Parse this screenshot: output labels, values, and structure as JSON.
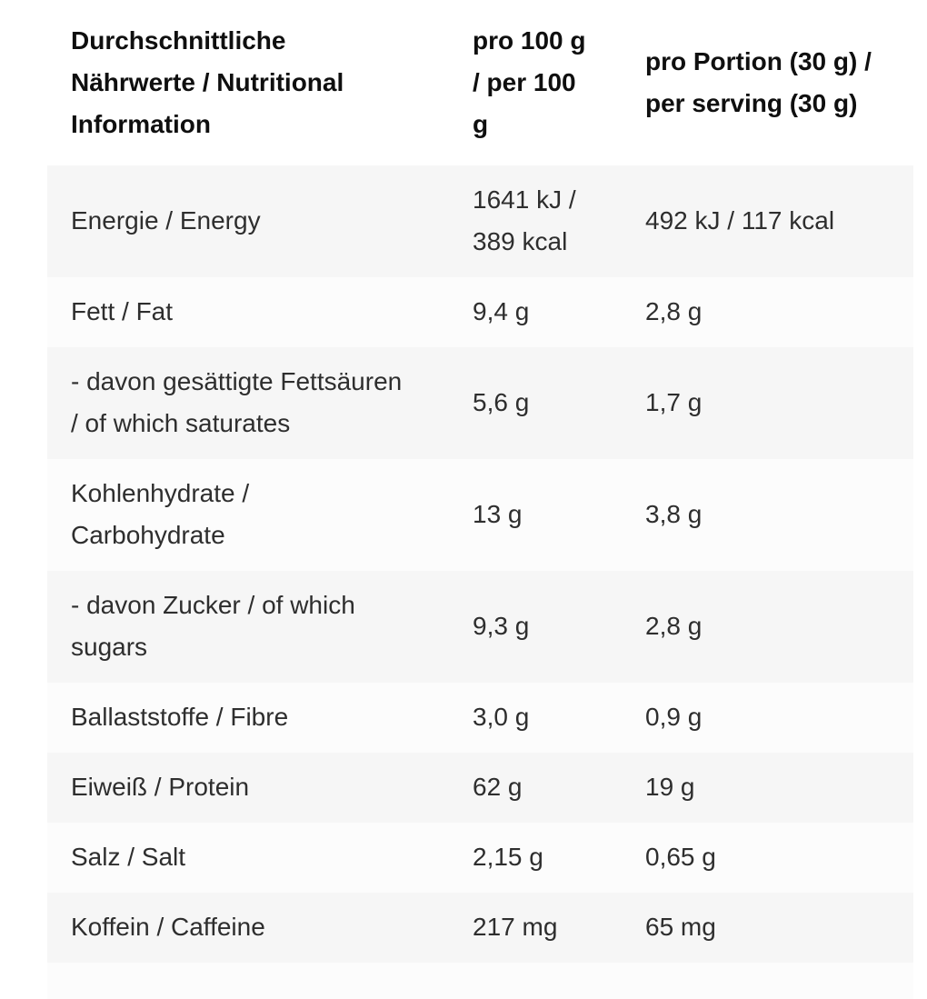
{
  "table": {
    "title": "Nutrition information table",
    "colors": {
      "shaded_row": "#f6f6f6",
      "unshaded_row": "#fcfcfc",
      "header_text": "#0f0f0f",
      "body_text": "#2e2e2e",
      "page_background": "#ffffff"
    },
    "columns": [
      {
        "id": "nutrient",
        "header_lines": [
          "Durchschnittliche",
          "Nährwerte / Nutritional",
          "Information"
        ]
      },
      {
        "id": "per_100g",
        "header_lines": [
          "pro 100 g",
          "/ per 100",
          "g"
        ]
      },
      {
        "id": "per_serving",
        "header_lines": [
          "pro Portion (30 g) /",
          "per serving (30 g)"
        ]
      }
    ],
    "rows": [
      {
        "label_lines": [
          "Energie / Energy"
        ],
        "per100_lines": [
          "1641 kJ /",
          "389 kcal"
        ],
        "portion_lines": [
          "492 kJ / 117 kcal"
        ],
        "shaded": true
      },
      {
        "label_lines": [
          "Fett / Fat"
        ],
        "per100_lines": [
          "9,4 g"
        ],
        "portion_lines": [
          "2,8 g"
        ],
        "shaded": false
      },
      {
        "label_lines": [
          "- davon gesättigte Fettsäuren",
          "/ of which saturates"
        ],
        "per100_lines": [
          "5,6 g"
        ],
        "portion_lines": [
          "1,7 g"
        ],
        "shaded": true
      },
      {
        "label_lines": [
          "Kohlenhydrate /",
          "Carbohydrate"
        ],
        "per100_lines": [
          "13 g"
        ],
        "portion_lines": [
          "3,8 g"
        ],
        "shaded": false
      },
      {
        "label_lines": [
          "- davon Zucker / of which",
          "sugars"
        ],
        "per100_lines": [
          "9,3 g"
        ],
        "portion_lines": [
          "2,8 g"
        ],
        "shaded": true
      },
      {
        "label_lines": [
          "Ballaststoffe / Fibre"
        ],
        "per100_lines": [
          "3,0 g"
        ],
        "portion_lines": [
          "0,9 g"
        ],
        "shaded": false
      },
      {
        "label_lines": [
          "Eiweiß / Protein"
        ],
        "per100_lines": [
          "62 g"
        ],
        "portion_lines": [
          "19 g"
        ],
        "shaded": true
      },
      {
        "label_lines": [
          "Salz / Salt"
        ],
        "per100_lines": [
          "2,15 g"
        ],
        "portion_lines": [
          "0,65 g"
        ],
        "shaded": false
      },
      {
        "label_lines": [
          "Koffein / Caffeine"
        ],
        "per100_lines": [
          "217 mg"
        ],
        "portion_lines": [
          "65 mg"
        ],
        "shaded": true
      },
      {
        "label_lines": [],
        "per100_lines": [],
        "portion_lines": [],
        "shaded": false,
        "partial": true
      }
    ]
  }
}
